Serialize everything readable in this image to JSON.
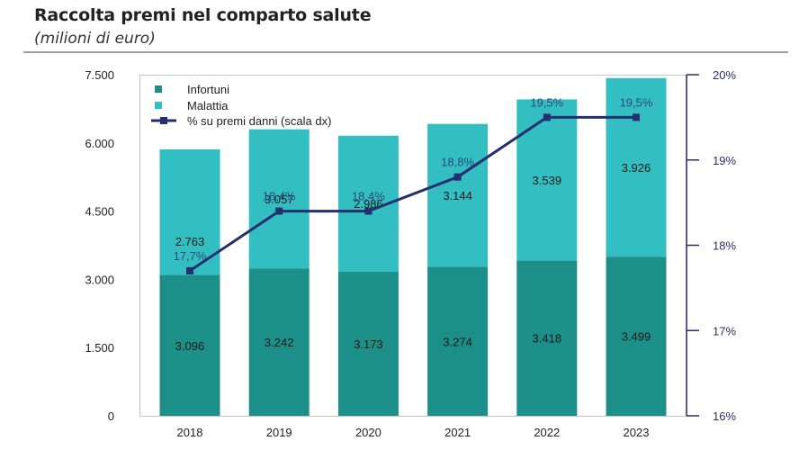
{
  "header": {
    "title": "Raccolta premi nel comparto salute",
    "subtitle": "(milioni di euro)"
  },
  "colors": {
    "infortuni": "#1c8f88",
    "malattia": "#33bec2",
    "line": "#252e6e",
    "axis_right": "#2b2f6b",
    "frame": "#c4c4c4"
  },
  "chart_data": {
    "type": "bar",
    "stacked": true,
    "title": "Raccolta premi nel comparto salute",
    "subtitle": "(milioni di euro)",
    "categories": [
      "2018",
      "2019",
      "2020",
      "2021",
      "2022",
      "2023"
    ],
    "series": [
      {
        "name": "Infortuni",
        "type": "bar",
        "axis": "left",
        "values": [
          3096,
          3242,
          3173,
          3274,
          3418,
          3499
        ],
        "labels": [
          "3.096",
          "3.242",
          "3.173",
          "3.274",
          "3.418",
          "3.499"
        ]
      },
      {
        "name": "Malattia",
        "type": "bar",
        "axis": "left",
        "values": [
          2763,
          3057,
          2986,
          3144,
          3539,
          3926
        ],
        "labels": [
          "2.763",
          "3.057",
          "2.986",
          "3.144",
          "3.539",
          "3.926"
        ]
      },
      {
        "name": "% su premi danni (scala dx)",
        "type": "line",
        "axis": "right",
        "values": [
          17.7,
          18.4,
          18.4,
          18.8,
          19.5,
          19.5
        ],
        "labels": [
          "17,7%",
          "18,4%",
          "18,4%",
          "18,8%",
          "19,5%",
          "19,5%"
        ]
      }
    ],
    "y_left": {
      "min": 0,
      "max": 7500,
      "ticks": [
        0,
        1500,
        3000,
        4500,
        6000,
        7500
      ],
      "tick_labels": [
        "0",
        "1.500",
        "3.000",
        "4.500",
        "6.000",
        "7.500"
      ]
    },
    "y_right": {
      "min": 16,
      "max": 20,
      "ticks": [
        16,
        17,
        18,
        19,
        20
      ],
      "tick_labels": [
        "16%",
        "17%",
        "18%",
        "19%",
        "20%"
      ]
    },
    "xlabel": "",
    "ylabel": "",
    "grid": false,
    "legend": {
      "position": "top-left",
      "entries": [
        "Infortuni",
        "Malattia",
        "% su premi danni (scala dx)"
      ]
    }
  }
}
